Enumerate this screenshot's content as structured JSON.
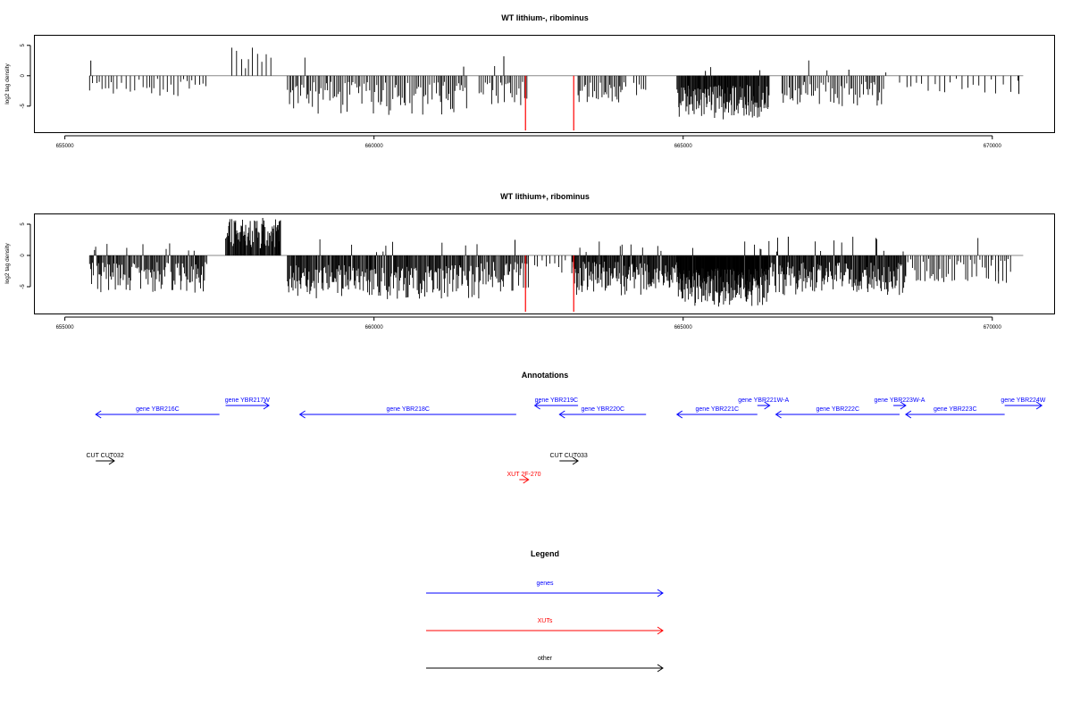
{
  "chart_data": [
    {
      "type": "bar",
      "title": "WT lithium-, ribominus",
      "ylabel": "log2 tag density",
      "xlim": [
        654500,
        671000
      ],
      "ylim": [
        -9,
        6
      ],
      "xticks": [
        655000,
        660000,
        665000,
        670000
      ],
      "xtick_labels": [
        "655000",
        "660000",
        "665000",
        "670000"
      ],
      "yticks": [
        5,
        0,
        -5
      ],
      "ytick_labels": [
        "5",
        "0",
        "-5"
      ],
      "baseline_range": [
        655400,
        670500
      ],
      "grid": false,
      "series": [
        {
          "color": "#000000",
          "values_description_range": [
            -7.5,
            5
          ],
          "regions": [
            {
              "from": 655400,
              "to": 657300,
              "min": -3.5,
              "max": -0.5,
              "spacing": 55,
              "pos_chance": 0.02
            },
            {
              "from": 657700,
              "to": 658400,
              "min": 1.0,
              "max": 5.0,
              "spacing": 70,
              "pos_chance": 0.85
            },
            {
              "from": 658600,
              "to": 661500,
              "min": -6.5,
              "max": -1.0,
              "spacing": 28,
              "pos_chance": 0.02
            },
            {
              "from": 661700,
              "to": 662500,
              "min": -5.0,
              "max": -1.0,
              "spacing": 30,
              "pos_chance": 0.05
            },
            {
              "from": 663300,
              "to": 664100,
              "min": -5.0,
              "max": -1.0,
              "spacing": 26,
              "pos_chance": 0.03
            },
            {
              "from": 664200,
              "to": 664400,
              "min": -4.0,
              "max": -1.0,
              "spacing": 40,
              "pos_chance": 0.0
            },
            {
              "from": 664900,
              "to": 666400,
              "min": -7.5,
              "max": -1.5,
              "spacing": 11,
              "pos_chance": 0.02
            },
            {
              "from": 666600,
              "to": 668300,
              "min": -5.0,
              "max": -1.0,
              "spacing": 28,
              "pos_chance": 0.04
            },
            {
              "from": 668500,
              "to": 670450,
              "min": -3.0,
              "max": -0.5,
              "spacing": 90,
              "pos_chance": 0.0
            }
          ],
          "singles": [
            {
              "x": 655420,
              "y": 2.5
            },
            {
              "x": 661450,
              "y": 1.5
            },
            {
              "x": 662100,
              "y": 3.2
            },
            {
              "x": 665360,
              "y": 0.8
            },
            {
              "x": 667680,
              "y": 1.0
            },
            {
              "x": 670430,
              "y": -3.0
            }
          ]
        },
        {
          "color": "#ff0000",
          "bars": [
            {
              "x": 662450,
              "y": -9
            },
            {
              "x": 663230,
              "y": -9
            }
          ]
        }
      ]
    },
    {
      "type": "bar",
      "title": "WT lithium+, ribominus",
      "ylabel": "log2 tag density",
      "xlim": [
        654500,
        671000
      ],
      "ylim": [
        -9,
        6
      ],
      "xticks": [
        655000,
        660000,
        665000,
        670000
      ],
      "xtick_labels": [
        "655000",
        "660000",
        "665000",
        "670000"
      ],
      "yticks": [
        5,
        0,
        -5
      ],
      "ytick_labels": [
        "5",
        "0",
        "-5"
      ],
      "baseline_range": [
        655400,
        670500
      ],
      "grid": false,
      "series": [
        {
          "color": "#000000",
          "regions": [
            {
              "from": 655400,
              "to": 657300,
              "min": -6.0,
              "max": -1.0,
              "spacing": 16,
              "pos_chance": 0.05
            },
            {
              "from": 657600,
              "to": 658500,
              "min": 1.0,
              "max": 6.0,
              "spacing": 12,
              "pos_chance": 0.92
            },
            {
              "from": 658600,
              "to": 661700,
              "min": -7.0,
              "max": -1.5,
              "spacing": 14,
              "pos_chance": 0.04
            },
            {
              "from": 661700,
              "to": 662500,
              "min": -6.0,
              "max": -1.0,
              "spacing": 18,
              "pos_chance": 0.04
            },
            {
              "from": 662600,
              "to": 663100,
              "min": -3.0,
              "max": -0.5,
              "spacing": 60,
              "pos_chance": 0.0
            },
            {
              "from": 663200,
              "to": 664900,
              "min": -6.5,
              "max": -1.0,
              "spacing": 12,
              "pos_chance": 0.05
            },
            {
              "from": 664900,
              "to": 666400,
              "min": -8.5,
              "max": -2.0,
              "spacing": 7,
              "pos_chance": 0.02
            },
            {
              "from": 666400,
              "to": 668600,
              "min": -6.5,
              "max": -1.0,
              "spacing": 12,
              "pos_chance": 0.05
            },
            {
              "from": 668600,
              "to": 670300,
              "min": -4.5,
              "max": -0.5,
              "spacing": 35,
              "pos_chance": 0.03
            }
          ],
          "singles": [
            {
              "x": 658200,
              "y": 6.0
            },
            {
              "x": 662280,
              "y": 2.5
            },
            {
              "x": 666700,
              "y": 3.0
            },
            {
              "x": 670100,
              "y": -4.5
            }
          ]
        },
        {
          "color": "#ff0000",
          "bars": [
            {
              "x": 662450,
              "y": -9
            },
            {
              "x": 663230,
              "y": -9
            }
          ]
        }
      ]
    },
    {
      "type": "annotation",
      "title": "Annotations",
      "features": [
        {
          "label": "gene YBR216C",
          "color": "#0000ff",
          "start": 655500,
          "end": 657500,
          "strand": "-",
          "row": 0
        },
        {
          "label": "gene YBR217W",
          "color": "#0000ff",
          "start": 657600,
          "end": 658300,
          "strand": "+",
          "row": 0
        },
        {
          "label": "gene YBR218C",
          "color": "#0000ff",
          "start": 658800,
          "end": 662300,
          "strand": "-",
          "row": 0
        },
        {
          "label": "gene YBR219C",
          "color": "#0000ff",
          "start": 662600,
          "end": 663300,
          "strand": "-",
          "row": 0
        },
        {
          "label": "gene YBR220C",
          "color": "#0000ff",
          "start": 663000,
          "end": 664400,
          "strand": "-",
          "row": 0
        },
        {
          "label": "gene YBR221C",
          "color": "#0000ff",
          "start": 664900,
          "end": 666200,
          "strand": "-",
          "row": 0
        },
        {
          "label": "gene YBR221W-A",
          "color": "#0000ff",
          "start": 666200,
          "end": 666400,
          "strand": "+",
          "row": 0
        },
        {
          "label": "gene YBR222C",
          "color": "#0000ff",
          "start": 666500,
          "end": 668500,
          "strand": "-",
          "row": 0
        },
        {
          "label": "gene YBR223W-A",
          "color": "#0000ff",
          "start": 668400,
          "end": 668600,
          "strand": "+",
          "row": 0
        },
        {
          "label": "gene YBR223C",
          "color": "#0000ff",
          "start": 668600,
          "end": 670200,
          "strand": "-",
          "row": 0
        },
        {
          "label": "gene YBR224W",
          "color": "#0000ff",
          "start": 670200,
          "end": 670800,
          "strand": "+",
          "row": 0
        },
        {
          "label": "CUT CUT032",
          "color": "#000000",
          "start": 655500,
          "end": 655800,
          "strand": "+",
          "row": 1
        },
        {
          "label": "CUT CUT033",
          "color": "#000000",
          "start": 663000,
          "end": 663300,
          "strand": "+",
          "row": 1
        },
        {
          "label": "XUT 2F-270",
          "color": "#ff0000",
          "start": 662350,
          "end": 662500,
          "strand": "+",
          "row": 2
        }
      ]
    },
    {
      "type": "legend",
      "title": "Legend",
      "entries": [
        {
          "label": "genes",
          "color": "#0000ff"
        },
        {
          "label": "XUTs",
          "color": "#ff0000"
        },
        {
          "label": "other",
          "color": "#000000"
        }
      ]
    }
  ]
}
